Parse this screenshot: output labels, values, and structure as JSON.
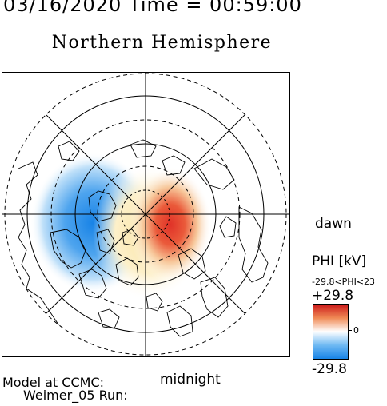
{
  "header": {
    "datetime": "03/16/2020 Time = 00:59:00"
  },
  "title": "Northern Hemisphere",
  "labels": {
    "dawn": "dawn",
    "midnight": "midnight"
  },
  "colorbar": {
    "title": "PHI [kV]",
    "range_text": "-29.8<PHI<23",
    "max_label": "+29.8",
    "zero_label": "0",
    "min_label": "-29.8",
    "colors": {
      "max": "#cc1b1b",
      "mid": "#ffffff",
      "min": "#1883e6"
    }
  },
  "footer": {
    "line1": "Model at CCMC:",
    "line2": "Weimer_05 Run:"
  }
}
